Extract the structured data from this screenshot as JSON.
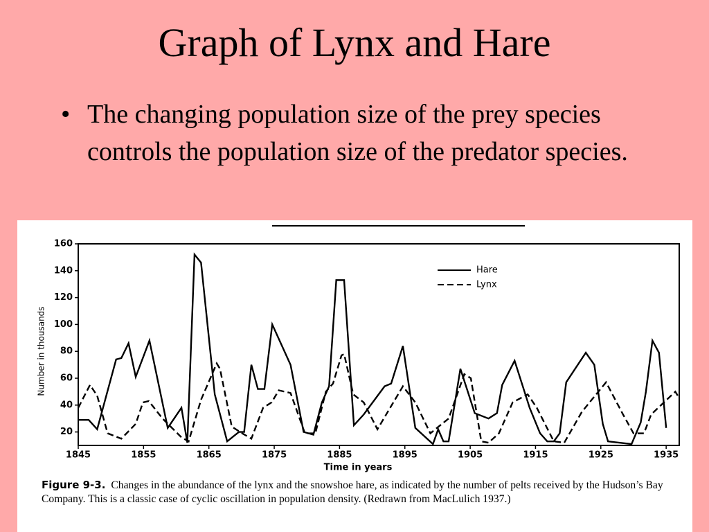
{
  "slide": {
    "title": "Graph of Lynx and Hare",
    "bullets": [
      "The changing population size of the prey species controls the population size of the predator species."
    ]
  },
  "chart_data": {
    "type": "line",
    "xlabel": "Time in years",
    "ylabel": "Number in thousands",
    "xlim": [
      1845,
      1937
    ],
    "xticks": [
      1845,
      1855,
      1865,
      1875,
      1885,
      1895,
      1905,
      1915,
      1925,
      1935
    ],
    "ylim": [
      10,
      160
    ],
    "yticks": [
      20,
      40,
      60,
      80,
      100,
      120,
      140,
      160
    ],
    "grid": false,
    "legend": "top-right",
    "series": [
      {
        "name": "Hare",
        "color": "#000000",
        "style": "solid",
        "x": [
          1845,
          1846.6,
          1847.9,
          1850.8,
          1851.6,
          1852.7,
          1853.8,
          1855.9,
          1858.7,
          1860.8,
          1861.7,
          1862.8,
          1863.8,
          1865.9,
          1867.8,
          1869.6,
          1870.4,
          1871.5,
          1872.5,
          1873.5,
          1874.7,
          1877.5,
          1879.5,
          1881,
          1882.3,
          1883.4,
          1884.5,
          1885.7,
          1887.2,
          1888.7,
          1891.9,
          1892.9,
          1894.7,
          1896.6,
          1899.3,
          1900.1,
          1900.9,
          1901.7,
          1903.5,
          1905.7,
          1907.8,
          1909.1,
          1909.9,
          1911.8,
          1914.1,
          1915.7,
          1916.8,
          1917.8,
          1918.7,
          1919.7,
          1922.7,
          1924,
          1925.3,
          1926.1,
          1929.7,
          1931.1,
          1931.9,
          1932.9,
          1933.9,
          1935
        ],
        "values": [
          29,
          29,
          22,
          74,
          75,
          86,
          61,
          88,
          23,
          38,
          12,
          152,
          146,
          48,
          13,
          20,
          20,
          70,
          52,
          52,
          100,
          70,
          20,
          18,
          42,
          54,
          133,
          133,
          25,
          33,
          54,
          56,
          84,
          23,
          11,
          22,
          13,
          13,
          67,
          34,
          30,
          34,
          55,
          73,
          38,
          19,
          13,
          13,
          19,
          57,
          79,
          70,
          26,
          13,
          11,
          27,
          50,
          88,
          79,
          23
        ]
      },
      {
        "name": "Lynx",
        "color": "#000000",
        "style": "dashed",
        "x": [
          1845,
          1846.8,
          1847.9,
          1849.5,
          1851.6,
          1853.8,
          1854.9,
          1855.8,
          1857.9,
          1860.8,
          1861.9,
          1863.8,
          1866.2,
          1866.7,
          1868.5,
          1870.1,
          1871.5,
          1873.3,
          1874.6,
          1875.7,
          1877.5,
          1879.7,
          1881.3,
          1882.9,
          1884,
          1885.3,
          1885.7,
          1887.1,
          1888.7,
          1890.8,
          1894.7,
          1896.6,
          1898.9,
          1901.7,
          1904.1,
          1905.1,
          1906.7,
          1907.8,
          1909.4,
          1911.5,
          1913.8,
          1915.2,
          1917.8,
          1919.4,
          1922.1,
          1925.8,
          1928.4,
          1930,
          1931.6,
          1932.7,
          1936.4,
          1936.9
        ],
        "values": [
          38,
          55,
          47,
          19,
          15,
          26,
          42,
          43,
          30,
          16,
          13,
          44,
          71,
          67,
          24,
          19,
          15,
          38,
          42,
          51,
          49,
          19,
          19,
          50,
          56,
          77,
          78,
          48,
          42,
          22,
          54,
          42,
          19,
          30,
          63,
          60,
          13,
          12,
          19,
          42,
          48,
          38,
          13,
          12,
          35,
          57,
          33,
          19,
          19,
          33,
          50,
          46
        ]
      }
    ]
  },
  "caption": {
    "label": "Figure 9-3.",
    "text": "Changes in the abundance of the lynx and the snowshoe hare, as indicated by the number of pelts received by the Hudson’s Bay Company. This is a classic case of cyclic oscillation in population density. (Redrawn from MacLulich 1937.)"
  }
}
